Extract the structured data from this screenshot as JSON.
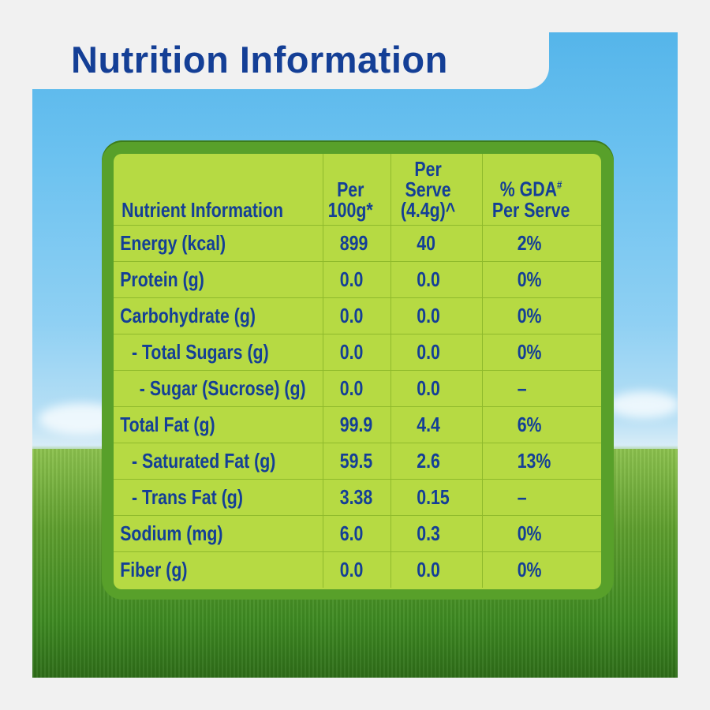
{
  "title": "Nutrition Information",
  "colors": {
    "title_blue": "#143f96",
    "panel_green": "#b6da43",
    "panel_border": "#58a02a",
    "sky": "#6cc2f0",
    "grass": "#3f8820"
  },
  "table": {
    "headers": {
      "nutrient": "Nutrient Information",
      "per100_line1": "Per",
      "per100_line2": "100g*",
      "perserve_line1": "Per Serve",
      "perserve_line2": "(4.4g)^",
      "gda_line1": "% GDA",
      "gda_sup": "#",
      "gda_line2": "Per Serve"
    },
    "rows": [
      {
        "name": "Energy (kcal)",
        "per100": "899",
        "serve": "40",
        "gda": "2%"
      },
      {
        "name": "Protein (g)",
        "per100": "0.0",
        "serve": "0.0",
        "gda": "0%"
      },
      {
        "name": "Carbohydrate (g)",
        "per100": "0.0",
        "serve": "0.0",
        "gda": "0%"
      },
      {
        "name": "- Total Sugars (g)",
        "per100": "0.0",
        "serve": "0.0",
        "gda": "0%"
      },
      {
        "name": "- Sugar (Sucrose) (g)",
        "per100": "0.0",
        "serve": "0.0",
        "gda": "–"
      },
      {
        "name": "Total Fat (g)",
        "per100": "99.9",
        "serve": "4.4",
        "gda": "6%"
      },
      {
        "name": "- Saturated Fat (g)",
        "per100": "59.5",
        "serve": "2.6",
        "gda": "13%"
      },
      {
        "name": "- Trans Fat (g)",
        "per100": "3.38",
        "serve": "0.15",
        "gda": "–"
      },
      {
        "name": "Sodium (mg)",
        "per100": "6.0",
        "serve": "0.3",
        "gda": "0%"
      },
      {
        "name": "Fiber (g)",
        "per100": "0.0",
        "serve": "0.0",
        "gda": "0%"
      }
    ]
  }
}
